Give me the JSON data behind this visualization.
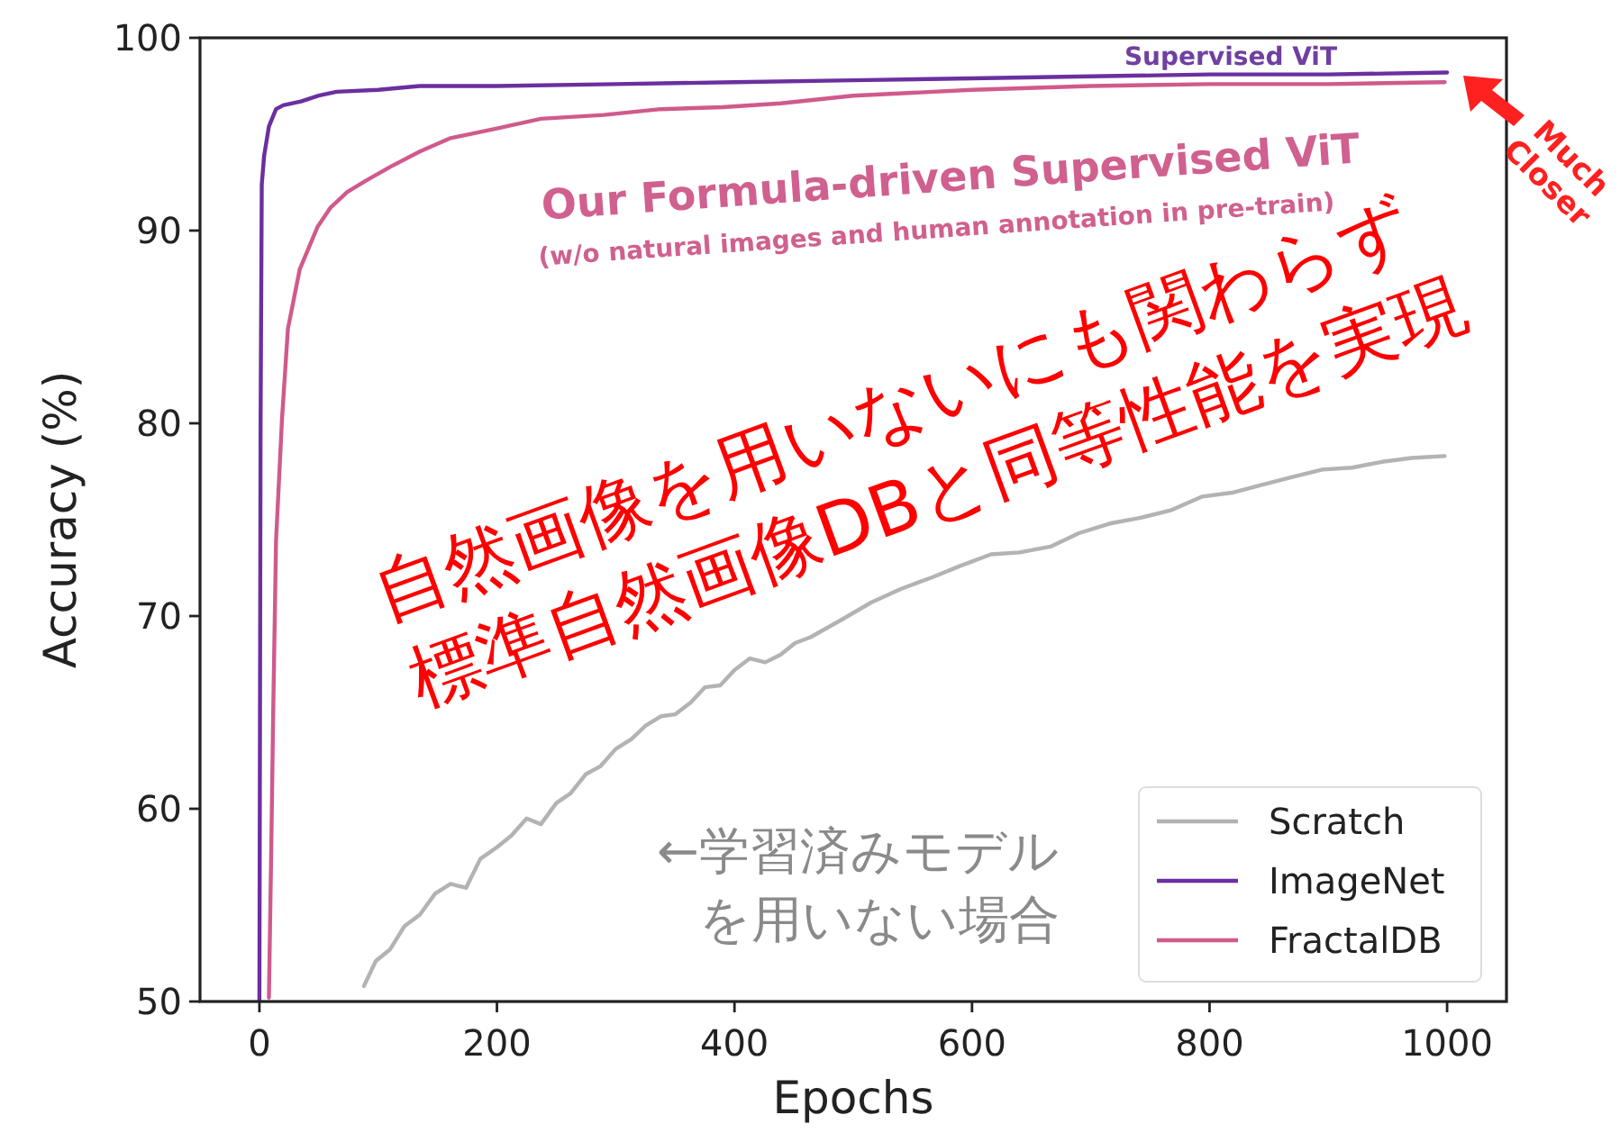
{
  "chart_data": {
    "type": "line",
    "xlabel": "Epochs",
    "ylabel": "Accuracy (%)",
    "xlim": [
      -50,
      1050
    ],
    "ylim": [
      50,
      100
    ],
    "xticks": [
      0,
      200,
      400,
      600,
      800,
      1000
    ],
    "yticks": [
      50,
      60,
      70,
      80,
      90,
      100
    ],
    "grid": false,
    "legend": "bottom right",
    "line_style": "solid",
    "marker": "none",
    "series": [
      {
        "name": "Scratch",
        "color": "#b3b3b3",
        "x": [
          88,
          98,
          110,
          122,
          135,
          148,
          161,
          174,
          186,
          200,
          212,
          225,
          237,
          250,
          262,
          275,
          287,
          300,
          313,
          325,
          338,
          350,
          363,
          375,
          388,
          400,
          413,
          426,
          439,
          451,
          464,
          490,
          515,
          540,
          566,
          590,
          616,
          640,
          666,
          690,
          716,
          742,
          768,
          794,
          819,
          844,
          869,
          895,
          920,
          945,
          970,
          998
        ],
        "values": [
          50.8,
          52.1,
          52.7,
          53.9,
          54.5,
          55.6,
          56.1,
          55.9,
          57.4,
          58.0,
          58.6,
          59.5,
          59.2,
          60.3,
          60.8,
          61.8,
          62.2,
          63.1,
          63.6,
          64.3,
          64.8,
          64.9,
          65.5,
          66.3,
          66.4,
          67.2,
          67.8,
          67.6,
          68.0,
          68.6,
          68.9,
          69.8,
          70.7,
          71.4,
          72.0,
          72.6,
          73.2,
          73.3,
          73.6,
          74.3,
          74.8,
          75.1,
          75.5,
          76.2,
          76.4,
          76.8,
          77.2,
          77.6,
          77.7,
          78.0,
          78.2,
          78.3
        ]
      },
      {
        "name": "ImageNet",
        "color": "#6b2fa0",
        "x": [
          0,
          1,
          2,
          4,
          8,
          14,
          20,
          35,
          50,
          65,
          100,
          135,
          200,
          300,
          400,
          500,
          600,
          700,
          800,
          900,
          1000
        ],
        "values": [
          50,
          80,
          92.4,
          93.9,
          95.4,
          96.3,
          96.5,
          96.7,
          97.0,
          97.2,
          97.3,
          97.5,
          97.5,
          97.6,
          97.7,
          97.8,
          97.9,
          98.0,
          98.1,
          98.1,
          98.2
        ]
      },
      {
        "name": "FractalDB",
        "color": "#d05a8c",
        "x": [
          8,
          10,
          11.5,
          14,
          19,
          24,
          34,
          49,
          60,
          74,
          90,
          110,
          135,
          161,
          200,
          237,
          290,
          338,
          390,
          439,
          500,
          600,
          700,
          800,
          900,
          998
        ],
        "values": [
          50.2,
          58,
          64.5,
          73.9,
          80.2,
          84.9,
          88.0,
          90.2,
          91.2,
          92.0,
          92.6,
          93.3,
          94.1,
          94.8,
          95.3,
          95.8,
          96.0,
          96.3,
          96.4,
          96.6,
          97.0,
          97.3,
          97.5,
          97.6,
          97.6,
          97.7
        ]
      }
    ],
    "annotations": [
      "Supervised ViT",
      "Our Formula-driven Supervised ViT",
      "(w/o natural images and human annotation in pre-train)",
      "自然画像を用いないにも関わらず",
      "標準自然画像DBと同等性能を実現",
      "←学習済みモデル",
      "を用いない場合",
      "Much\nCloser"
    ]
  }
}
